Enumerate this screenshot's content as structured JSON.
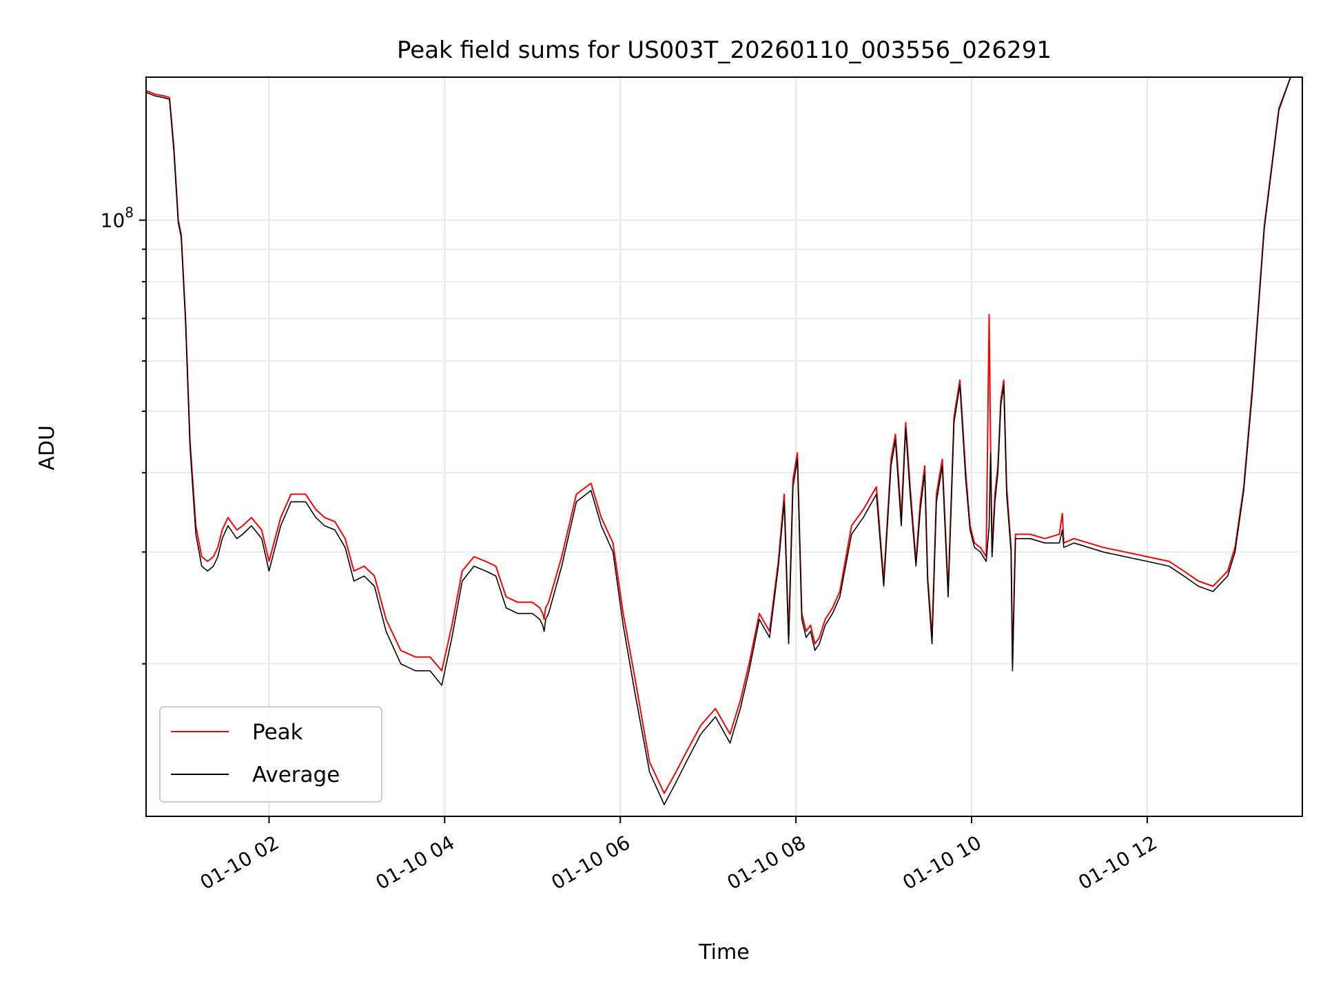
{
  "chart_data": {
    "type": "line",
    "title": "Peak field sums for US003T_20260110_003556_026291",
    "xlabel": "Time",
    "ylabel": "ADU",
    "yscale": "log",
    "grid": true,
    "legend_position": "lower-left",
    "xlim": [
      "01-10 00:36",
      "01-10 13:46"
    ],
    "ylim": [
      11500000,
      168000000
    ],
    "x_ticks": [
      "01-10 02",
      "01-10 04",
      "01-10 06",
      "01-10 08",
      "01-10 10",
      "01-10 12"
    ],
    "y_ticks": [
      {
        "label": "10",
        "exp": "8"
      }
    ],
    "series": [
      {
        "name": "Peak",
        "color": "#ff0000",
        "x": [
          "00:36",
          "00:42",
          "00:48",
          "00:52",
          "00:55",
          "00:58",
          "01:00",
          "01:03",
          "01:06",
          "01:10",
          "01:14",
          "01:18",
          "01:22",
          "01:25",
          "01:28",
          "01:32",
          "01:38",
          "01:42",
          "01:48",
          "01:55",
          "02:00",
          "02:08",
          "02:15",
          "02:20",
          "02:25",
          "02:32",
          "02:38",
          "02:45",
          "02:52",
          "02:58",
          "03:05",
          "03:12",
          "03:20",
          "03:30",
          "03:40",
          "03:50",
          "03:58",
          "04:05",
          "04:12",
          "04:20",
          "04:28",
          "04:35",
          "04:42",
          "04:50",
          "05:00",
          "05:05",
          "05:07",
          "05:08",
          "05:09",
          "05:11",
          "05:20",
          "05:30",
          "05:40",
          "05:47",
          "05:55",
          "06:02",
          "06:10",
          "06:20",
          "06:30",
          "06:38",
          "06:45",
          "06:55",
          "07:05",
          "07:15",
          "07:22",
          "07:28",
          "07:35",
          "07:42",
          "07:48",
          "07:52",
          "07:55",
          "07:58",
          "08:01",
          "08:04",
          "08:07",
          "08:10",
          "08:13",
          "08:16",
          "08:20",
          "08:25",
          "08:30",
          "08:38",
          "08:46",
          "08:55",
          "09:00",
          "09:05",
          "09:08",
          "09:12",
          "09:15",
          "09:18",
          "09:22",
          "09:25",
          "09:28",
          "09:30",
          "09:33",
          "09:36",
          "09:40",
          "09:44",
          "09:48",
          "09:52",
          "09:56",
          "09:59",
          "10:02",
          "10:06",
          "10:10",
          "10:12",
          "10:13",
          "10:14",
          "10:16",
          "10:18",
          "10:20",
          "10:22",
          "10:24",
          "10:27",
          "10:28",
          "10:30",
          "10:40",
          "10:50",
          "11:00",
          "11:02",
          "11:03",
          "11:10",
          "11:20",
          "11:30",
          "11:45",
          "12:00",
          "12:15",
          "12:25",
          "12:35",
          "12:45",
          "12:55",
          "13:00",
          "13:06",
          "13:12",
          "13:20",
          "13:30",
          "13:38",
          "13:44",
          "13:46"
        ],
        "values": [
          160000000,
          158000000,
          157000000,
          156000000,
          130000000,
          100000000,
          95000000,
          70000000,
          45000000,
          33000000,
          29500000,
          29000000,
          29500000,
          30500000,
          32500000,
          34000000,
          32500000,
          33000000,
          34000000,
          32500000,
          29000000,
          34000000,
          37000000,
          37000000,
          37000000,
          35000000,
          34000000,
          33500000,
          31500000,
          28000000,
          28500000,
          27500000,
          23500000,
          21000000,
          20500000,
          20500000,
          19500000,
          23000000,
          28000000,
          29500000,
          29000000,
          28500000,
          25500000,
          25000000,
          25000000,
          24500000,
          24000000,
          23500000,
          24500000,
          25000000,
          29500000,
          37000000,
          38500000,
          34000000,
          31000000,
          24000000,
          19000000,
          14000000,
          12500000,
          13500000,
          14500000,
          16000000,
          17000000,
          15500000,
          17500000,
          20000000,
          24000000,
          22500000,
          29000000,
          37000000,
          22000000,
          39000000,
          43000000,
          24000000,
          22500000,
          23000000,
          21500000,
          22000000,
          23500000,
          24500000,
          26000000,
          33000000,
          35000000,
          38000000,
          27000000,
          42000000,
          46000000,
          34000000,
          48000000,
          38000000,
          29000000,
          36000000,
          41000000,
          27500000,
          22000000,
          37000000,
          42000000,
          26000000,
          49000000,
          56000000,
          40000000,
          33000000,
          31000000,
          30500000,
          29500000,
          71000000,
          44000000,
          30000000,
          37000000,
          41000000,
          52000000,
          56000000,
          38000000,
          30500000,
          20000000,
          32000000,
          32000000,
          31500000,
          32000000,
          34500000,
          31000000,
          31500000,
          31000000,
          30500000,
          30000000,
          29500000,
          29000000,
          28000000,
          27000000,
          26500000,
          28000000,
          30500000,
          38000000,
          55000000,
          98000000,
          150000000,
          168000000,
          168000000,
          168000000
        ]
      },
      {
        "name": "Average",
        "color": "#000000",
        "x": [
          "00:36",
          "00:42",
          "00:48",
          "00:52",
          "00:55",
          "00:58",
          "01:00",
          "01:03",
          "01:06",
          "01:10",
          "01:14",
          "01:18",
          "01:22",
          "01:25",
          "01:28",
          "01:32",
          "01:38",
          "01:42",
          "01:48",
          "01:55",
          "02:00",
          "02:08",
          "02:15",
          "02:20",
          "02:25",
          "02:32",
          "02:38",
          "02:45",
          "02:52",
          "02:58",
          "03:05",
          "03:12",
          "03:20",
          "03:30",
          "03:40",
          "03:50",
          "03:58",
          "04:05",
          "04:12",
          "04:20",
          "04:28",
          "04:35",
          "04:42",
          "04:50",
          "05:00",
          "05:05",
          "05:07",
          "05:08",
          "05:09",
          "05:11",
          "05:20",
          "05:30",
          "05:40",
          "05:47",
          "05:55",
          "06:02",
          "06:10",
          "06:20",
          "06:30",
          "06:38",
          "06:45",
          "06:55",
          "07:05",
          "07:15",
          "07:22",
          "07:28",
          "07:35",
          "07:42",
          "07:48",
          "07:52",
          "07:55",
          "07:58",
          "08:01",
          "08:04",
          "08:07",
          "08:10",
          "08:13",
          "08:16",
          "08:20",
          "08:25",
          "08:30",
          "08:38",
          "08:46",
          "08:55",
          "09:00",
          "09:05",
          "09:08",
          "09:12",
          "09:15",
          "09:18",
          "09:22",
          "09:25",
          "09:28",
          "09:30",
          "09:33",
          "09:36",
          "09:40",
          "09:44",
          "09:48",
          "09:52",
          "09:56",
          "09:59",
          "10:02",
          "10:06",
          "10:10",
          "10:12",
          "10:13",
          "10:14",
          "10:16",
          "10:18",
          "10:20",
          "10:22",
          "10:24",
          "10:27",
          "10:28",
          "10:30",
          "10:40",
          "10:50",
          "11:00",
          "11:02",
          "11:03",
          "11:10",
          "11:20",
          "11:30",
          "11:45",
          "12:00",
          "12:15",
          "12:25",
          "12:35",
          "12:45",
          "12:55",
          "13:00",
          "13:06",
          "13:12",
          "13:20",
          "13:30",
          "13:38",
          "13:44",
          "13:46"
        ],
        "values": [
          159000000,
          157000000,
          156000000,
          155000000,
          128000000,
          99000000,
          94000000,
          69000000,
          44000000,
          32000000,
          28500000,
          28000000,
          28500000,
          29500000,
          31500000,
          33000000,
          31500000,
          32000000,
          33000000,
          31500000,
          28000000,
          33000000,
          36000000,
          36000000,
          36000000,
          34000000,
          33000000,
          32500000,
          30500000,
          27000000,
          27500000,
          26500000,
          22500000,
          20000000,
          19500000,
          19500000,
          18500000,
          22000000,
          27000000,
          28500000,
          28000000,
          27500000,
          24500000,
          24000000,
          24000000,
          23500000,
          23000000,
          22500000,
          23500000,
          24000000,
          28500000,
          36000000,
          37500000,
          33000000,
          30000000,
          23000000,
          18000000,
          13500000,
          12000000,
          13000000,
          14000000,
          15500000,
          16500000,
          15000000,
          17000000,
          19500000,
          23500000,
          22000000,
          28500000,
          36000000,
          21500000,
          38000000,
          42000000,
          23500000,
          22000000,
          22500000,
          21000000,
          21500000,
          23000000,
          24000000,
          25500000,
          32000000,
          34000000,
          37000000,
          26500000,
          41000000,
          45000000,
          33000000,
          47000000,
          37000000,
          28500000,
          35000000,
          40000000,
          27000000,
          21500000,
          36000000,
          41000000,
          25500000,
          48000000,
          55000000,
          39000000,
          32500000,
          30500000,
          30000000,
          29000000,
          33000000,
          43000000,
          29500000,
          36000000,
          40000000,
          51000000,
          55000000,
          37000000,
          30000000,
          19500000,
          31500000,
          31500000,
          31000000,
          31000000,
          32500000,
          30500000,
          31000000,
          30500000,
          30000000,
          29500000,
          29000000,
          28500000,
          27500000,
          26500000,
          26000000,
          27500000,
          30000000,
          37500000,
          54000000,
          97000000,
          149000000,
          168000000,
          168000000,
          168000000
        ]
      }
    ]
  }
}
